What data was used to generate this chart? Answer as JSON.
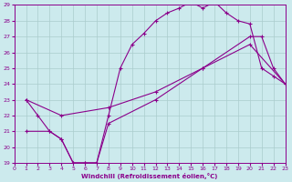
{
  "bg_color": "#cceaed",
  "line_color": "#8b008b",
  "grid_color": "#aacccc",
  "xlabel": "Windchill (Refroidissement éolien,°C)",
  "xlim": [
    0,
    23
  ],
  "ylim": [
    19,
    29
  ],
  "xticks": [
    0,
    1,
    2,
    3,
    4,
    5,
    6,
    7,
    8,
    9,
    10,
    11,
    12,
    13,
    14,
    15,
    16,
    17,
    18,
    19,
    20,
    21,
    22,
    23
  ],
  "yticks": [
    19,
    20,
    21,
    22,
    23,
    24,
    25,
    26,
    27,
    28,
    29
  ],
  "line1_x": [
    1,
    2,
    3,
    4,
    5,
    6,
    7,
    8,
    9,
    10,
    11,
    12,
    13,
    14,
    15,
    16,
    17,
    18,
    19,
    20,
    21,
    22,
    23
  ],
  "line1_y": [
    23,
    22,
    21,
    20.5,
    19,
    19,
    19,
    22,
    25,
    26.5,
    27.2,
    28.0,
    28.5,
    28.8,
    29.2,
    28.8,
    29.2,
    28.5,
    28.0,
    27.8,
    25.0,
    24.5,
    24.0
  ],
  "line2_x": [
    1,
    4,
    8,
    12,
    16,
    20,
    23
  ],
  "line2_y": [
    23,
    22,
    22.5,
    23.5,
    25.0,
    26.5,
    24.0
  ],
  "line3_x": [
    1,
    3,
    4,
    5,
    6,
    7,
    8,
    12,
    16,
    20,
    21,
    22,
    23
  ],
  "line3_y": [
    21,
    21,
    20.5,
    19,
    19,
    19,
    21.5,
    23,
    25,
    27,
    27,
    25,
    24
  ]
}
